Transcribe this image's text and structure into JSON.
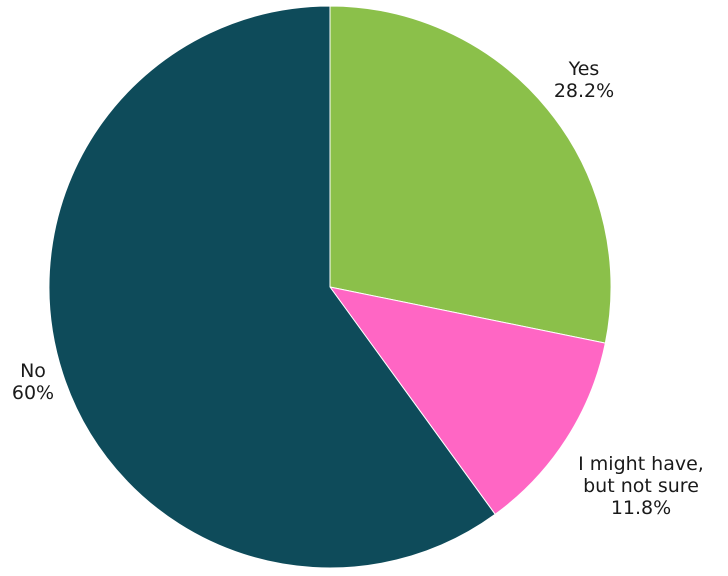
{
  "chart_data": {
    "type": "pie",
    "title": "",
    "categories": [
      "Yes",
      "I might have, but not sure",
      "No"
    ],
    "values": [
      28.2,
      11.8,
      60
    ],
    "value_labels": [
      "28.2%",
      "11.8%",
      "60%"
    ],
    "label_lines": [
      [
        "Yes"
      ],
      [
        "I might have,",
        "but not sure"
      ],
      [
        "No"
      ]
    ],
    "colors": [
      "#8bc04a",
      "#ff66c4",
      "#0e4b5a"
    ],
    "start_angle_deg": 0,
    "direction": "clockwise",
    "legend": "none"
  }
}
